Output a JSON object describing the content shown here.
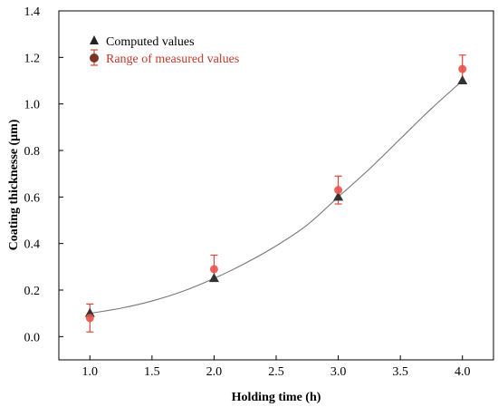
{
  "chart_data": {
    "type": "scatter",
    "xlabel": "Holding time (h)",
    "ylabel": "Coating thicknesse (μm)",
    "xlim": [
      0.75,
      4.25
    ],
    "ylim": [
      -0.1,
      1.4
    ],
    "xticks": [
      1.0,
      1.5,
      2.0,
      2.5,
      3.0,
      3.5,
      4.0
    ],
    "xtick_labels": [
      "1.0",
      "1.5",
      "2.0",
      "2.5",
      "3.0",
      "3.5",
      "4.0"
    ],
    "yticks": [
      0.0,
      0.2,
      0.4,
      0.6,
      0.8,
      1.0,
      1.2,
      1.4
    ],
    "ytick_labels": [
      "0.0",
      "0.2",
      "0.4",
      "0.6",
      "0.8",
      "1.0",
      "1.2",
      "1.4"
    ],
    "grid": false,
    "legend_position": "top-left",
    "series": [
      {
        "name": "Computed values",
        "marker": "triangle",
        "color": "#333333",
        "x": [
          1.0,
          2.0,
          3.0,
          4.0
        ],
        "y": [
          0.1,
          0.25,
          0.6,
          1.1
        ]
      },
      {
        "name": "Range of measured values",
        "marker": "circle",
        "color": "#e8534a",
        "errorbar_color": "#d9463c",
        "x": [
          1.0,
          2.0,
          3.0,
          4.0
        ],
        "y": [
          0.08,
          0.29,
          0.63,
          1.15
        ],
        "y_low": [
          0.02,
          0.24,
          0.57,
          1.09
        ],
        "y_high": [
          0.14,
          0.35,
          0.69,
          1.21
        ]
      }
    ],
    "fit_curve": {
      "color": "#777777",
      "x": [
        1.0,
        1.25,
        1.5,
        1.75,
        2.0,
        2.25,
        2.5,
        2.75,
        3.0,
        3.25,
        3.5,
        3.75,
        4.0
      ],
      "y": [
        0.1,
        0.122,
        0.153,
        0.195,
        0.25,
        0.315,
        0.39,
        0.48,
        0.6,
        0.72,
        0.85,
        0.98,
        1.1
      ]
    }
  }
}
